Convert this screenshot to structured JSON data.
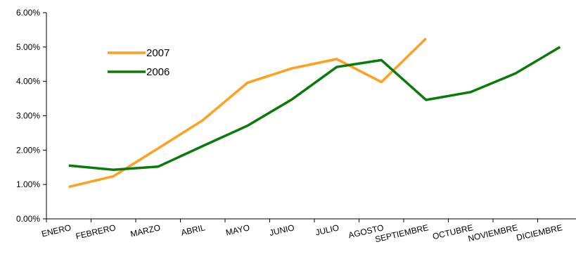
{
  "chart_data": {
    "type": "line",
    "title": "",
    "xlabel": "",
    "ylabel": "",
    "categories": [
      "ENERO",
      "FEBRERO",
      "MARZO",
      "ABRIL",
      "MAYO",
      "JUNIO",
      "JULIO",
      "AGOSTO",
      "SEPTIEMBRE",
      "OCTUBRE",
      "NOVIEMBRE",
      "DICIEMBRE"
    ],
    "ylim": [
      0,
      0.06
    ],
    "yticks": [
      "0.00%",
      "1.00%",
      "2.00%",
      "3.00%",
      "4.00%",
      "5.00%",
      "6.00%"
    ],
    "grid": false,
    "legend": "top-left",
    "series": [
      {
        "name": "2007",
        "color": "#FFA020",
        "values": [
          0.0093,
          0.0124,
          0.0205,
          0.0287,
          0.0396,
          0.0438,
          0.0465,
          0.0398,
          0.0525,
          null,
          null,
          null
        ]
      },
      {
        "name": "2006",
        "color": "#0A7A0A",
        "values": [
          0.0155,
          0.0143,
          0.0152,
          0.0212,
          0.0271,
          0.0348,
          0.0442,
          0.0462,
          0.0346,
          0.0369,
          0.0423,
          0.05
        ]
      }
    ]
  }
}
